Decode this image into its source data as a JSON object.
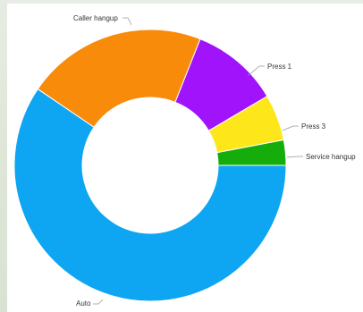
{
  "chart_data": {
    "type": "pie",
    "variant": "donut",
    "categories": [
      "Auto",
      "Caller hangup",
      "Press 1",
      "Press 3",
      "Service hangup"
    ],
    "values": [
      59.5,
      21.5,
      10.5,
      5.5,
      3.0
    ],
    "unit": "percent",
    "colors": [
      "#0ea5f2",
      "#f98b0b",
      "#a013fb",
      "#fde71b",
      "#14ad0b"
    ],
    "start_angle_deg": 90,
    "direction": "counterclockwise",
    "legend": "none",
    "title": ""
  }
}
